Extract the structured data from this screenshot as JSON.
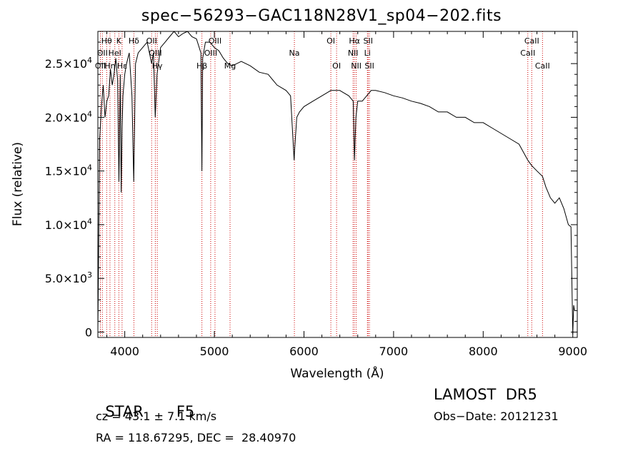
{
  "chart_data": {
    "type": "line",
    "title": "spec−56293−GAC118N28V1_sp04−202.fits",
    "xlabel": "Wavelength (Å)",
    "ylabel": "Flux (relative)",
    "xlim": [
      3700,
      9050
    ],
    "ylim": [
      -500,
      28000
    ],
    "x_ticks": [
      4000,
      5000,
      6000,
      7000,
      8000,
      9000
    ],
    "y_ticks": [
      {
        "value": 0,
        "label": "0"
      },
      {
        "value": 5000,
        "label": "5.0×10",
        "exp": "3"
      },
      {
        "value": 10000,
        "label": "1.0×10",
        "exp": "4"
      },
      {
        "value": 15000,
        "label": "1.5×10",
        "exp": "4"
      },
      {
        "value": 20000,
        "label": "2.0×10",
        "exp": "4"
      },
      {
        "value": 25000,
        "label": "2.5×10",
        "exp": "4"
      }
    ],
    "grid": false,
    "line_color": "#000000",
    "marker_color": "#cc0000",
    "spectrum": {
      "x": [
        3700,
        3720,
        3740,
        3760,
        3780,
        3800,
        3820,
        3840,
        3860,
        3880,
        3900,
        3920,
        3935,
        3950,
        3960,
        3970,
        3980,
        4000,
        4020,
        4050,
        4080,
        4100,
        4120,
        4150,
        4200,
        4250,
        4300,
        4320,
        4340,
        4360,
        4400,
        4450,
        4500,
        4550,
        4600,
        4650,
        4700,
        4750,
        4800,
        4850,
        4861,
        4870,
        4900,
        4950,
        5000,
        5050,
        5100,
        5150,
        5200,
        5250,
        5300,
        5400,
        5500,
        5600,
        5700,
        5800,
        5850,
        5890,
        5896,
        5920,
        5950,
        6000,
        6100,
        6200,
        6300,
        6400,
        6500,
        6550,
        6563,
        6580,
        6600,
        6650,
        6700,
        6750,
        6800,
        6900,
        7000,
        7100,
        7200,
        7300,
        7400,
        7500,
        7600,
        7700,
        7800,
        7900,
        8000,
        8100,
        8200,
        8300,
        8400,
        8498,
        8542,
        8600,
        8662,
        8700,
        8750,
        8800,
        8850,
        8900,
        8950,
        8980,
        9000,
        9010,
        9020
      ],
      "y": [
        100,
        18000,
        21000,
        23000,
        20000,
        21500,
        22000,
        24500,
        23000,
        24000,
        25500,
        23500,
        14000,
        24000,
        13000,
        19000,
        22000,
        24000,
        25000,
        26000,
        22000,
        14000,
        25000,
        26000,
        26500,
        27000,
        25000,
        26000,
        20000,
        24000,
        26500,
        27000,
        27500,
        28000,
        27500,
        27800,
        28000,
        27500,
        27300,
        26000,
        15000,
        25500,
        27000,
        27000,
        26500,
        26200,
        25500,
        25000,
        24800,
        25000,
        25200,
        24800,
        24200,
        24000,
        23000,
        22500,
        22000,
        16000,
        17000,
        20000,
        20500,
        21000,
        21500,
        22000,
        22500,
        22500,
        22000,
        21500,
        16000,
        20000,
        21500,
        21500,
        22000,
        22500,
        22500,
        22300,
        22000,
        21800,
        21500,
        21300,
        21000,
        20500,
        20500,
        20000,
        20000,
        19500,
        19500,
        19000,
        18500,
        18000,
        17500,
        16000,
        15500,
        15000,
        14500,
        13500,
        12500,
        12000,
        12500,
        11500,
        10000,
        9800,
        -200,
        2500,
        2000
      ]
    },
    "line_markers": [
      {
        "wavelength": 3728,
        "label": "OII",
        "row": 2
      },
      {
        "wavelength": 3750,
        "label": "OII",
        "row": 1
      },
      {
        "wavelength": 3798,
        "label": "Hθ",
        "row": 0
      },
      {
        "wavelength": 3835,
        "label": "Hη",
        "row": 2
      },
      {
        "wavelength": 3889,
        "label": "HeI",
        "row": 1
      },
      {
        "wavelength": 3934,
        "label": "K",
        "row": 0
      },
      {
        "wavelength": 3970,
        "label": "Hε",
        "row": 2
      },
      {
        "wavelength": 4102,
        "label": "Hδ",
        "row": 0
      },
      {
        "wavelength": 4300,
        "label": "OII",
        "row": 0
      },
      {
        "wavelength": 4341,
        "label": "OIII",
        "row": 1
      },
      {
        "wavelength": 4363,
        "label": "Hγ",
        "row": 2
      },
      {
        "wavelength": 4861,
        "label": "Hβ",
        "row": 2
      },
      {
        "wavelength": 4959,
        "label": "OIII",
        "row": 1
      },
      {
        "wavelength": 5007,
        "label": "OIII",
        "row": 0
      },
      {
        "wavelength": 5175,
        "label": "Mg",
        "row": 2
      },
      {
        "wavelength": 5893,
        "label": "Na",
        "row": 1
      },
      {
        "wavelength": 6300,
        "label": "OI",
        "row": 0
      },
      {
        "wavelength": 6364,
        "label": "OI",
        "row": 2
      },
      {
        "wavelength": 6548,
        "label": "NII",
        "row": 1
      },
      {
        "wavelength": 6563,
        "label": "Hα",
        "row": 0
      },
      {
        "wavelength": 6583,
        "label": "NII",
        "row": 2
      },
      {
        "wavelength": 6708,
        "label": "Li",
        "row": 1
      },
      {
        "wavelength": 6716,
        "label": "SII",
        "row": 0
      },
      {
        "wavelength": 6731,
        "label": "SII",
        "row": 2
      },
      {
        "wavelength": 8498,
        "label": "CaII",
        "row": 1
      },
      {
        "wavelength": 8542,
        "label": "CaII",
        "row": 0
      },
      {
        "wavelength": 8662,
        "label": "CaII",
        "row": 2
      }
    ]
  },
  "info": {
    "class_label": "STAR",
    "subclass": "F5",
    "survey": "LAMOST  DR5",
    "redshift": "cz = 43.1 ± 7.1 km/s",
    "obs_date": "Obs−Date: 20121231",
    "coords": "RA = 118.67295, DEC =  28.40970"
  }
}
